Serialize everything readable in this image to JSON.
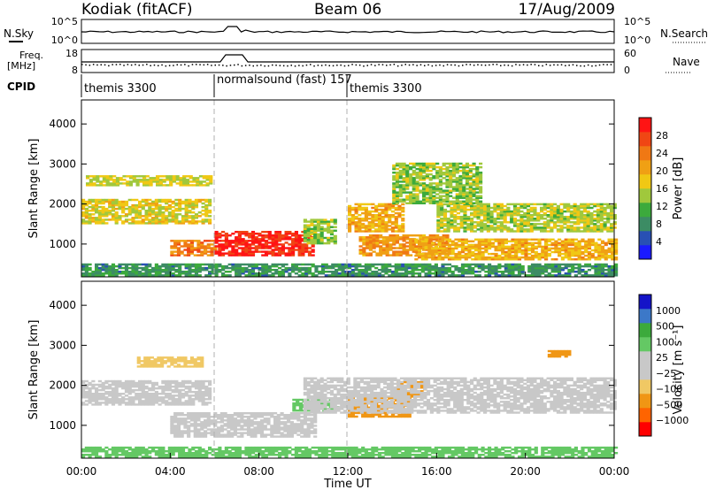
{
  "header": {
    "site": "Kodiak (fitACF)",
    "beam": "Beam 06",
    "date": "17/Aug/2009"
  },
  "top_panels": {
    "nsky_label": "N.Sky",
    "nsearch_label": "N.Search",
    "freq_label": "Freq.",
    "freq_unit": "[MHz]",
    "nave_label": "Nave",
    "cpid_label": "CPID",
    "nsky_ticks": [
      "10^5",
      "10^0"
    ],
    "nsearch_ticks": [
      "10^5",
      "10^0"
    ],
    "freq_ticks": [
      "18",
      "8"
    ],
    "nave_ticks": [
      "60",
      "0"
    ],
    "cpid_segments": [
      {
        "label": "themis 3300",
        "start": 0,
        "end": 6
      },
      {
        "label": "normalsound (fast) 157",
        "start": 6,
        "end": 12
      },
      {
        "label": "themis 3300",
        "start": 12,
        "end": 24
      }
    ]
  },
  "x_axis": {
    "label": "Time UT",
    "ticks": [
      "00:00",
      "04:00",
      "08:00",
      "12:00",
      "16:00",
      "20:00",
      "00:00"
    ]
  },
  "colors": {
    "power": [
      "#1a1aff",
      "#2850b4",
      "#3c8c64",
      "#3caa3c",
      "#a0c83c",
      "#f0c814",
      "#f0a014",
      "#f07814",
      "#f04614",
      "#ff1414"
    ],
    "velocity": [
      "#ff0000",
      "#ff6400",
      "#f09614",
      "#f0c864",
      "#c8c8c8",
      "#c8c8c8",
      "#64c864",
      "#3caa3c",
      "#3c78c8",
      "#1414c8"
    ]
  },
  "chart_data": [
    {
      "type": "heatmap",
      "title": "Power",
      "xlabel": "Time UT",
      "ylabel": "Slant Range [km]",
      "xlim": [
        0,
        24
      ],
      "ylim": [
        180,
        4600
      ],
      "y_ticks": [
        1000,
        2000,
        3000,
        4000
      ],
      "colorbar": {
        "label": "Power [dB]",
        "ticks": [
          4,
          8,
          12,
          16,
          20,
          24,
          28
        ],
        "range": [
          0,
          32
        ]
      },
      "features": [
        {
          "t0": 0.0,
          "t1": 5.8,
          "r0": 1500,
          "r1": 2100,
          "value": 17
        },
        {
          "t0": 0.2,
          "t1": 5.8,
          "r0": 2450,
          "r1": 2700,
          "value": 16
        },
        {
          "t0": 4.0,
          "t1": 6.0,
          "r0": 700,
          "r1": 1100,
          "value": 24
        },
        {
          "t0": 6.0,
          "t1": 10.5,
          "r0": 700,
          "r1": 1300,
          "value": 29
        },
        {
          "t0": 10.0,
          "t1": 11.5,
          "r0": 1000,
          "r1": 1600,
          "value": 14
        },
        {
          "t0": 12.0,
          "t1": 14.5,
          "r0": 1300,
          "r1": 2000,
          "value": 20
        },
        {
          "t0": 12.5,
          "t1": 16.5,
          "r0": 700,
          "r1": 1200,
          "value": 22
        },
        {
          "t0": 15.0,
          "t1": 24.0,
          "r0": 600,
          "r1": 1100,
          "value": 20
        },
        {
          "t0": 16.0,
          "t1": 24.0,
          "r0": 1300,
          "r1": 2000,
          "value": 15
        },
        {
          "t0": 14.0,
          "t1": 18.0,
          "r0": 2000,
          "r1": 3000,
          "value": 14
        },
        {
          "t0": 0.0,
          "t1": 24.0,
          "r0": 200,
          "r1": 500,
          "value": 9
        }
      ]
    },
    {
      "type": "heatmap",
      "title": "Velocity",
      "xlabel": "Time UT",
      "ylabel": "Slant Range [km]",
      "xlim": [
        0,
        24
      ],
      "ylim": [
        180,
        4600
      ],
      "y_ticks": [
        1000,
        2000,
        3000,
        4000
      ],
      "colorbar": {
        "label": "Velocity [m s⁻¹]",
        "ticks": [
          "1000",
          "500",
          "100",
          "25",
          "−25",
          "−100",
          "−500",
          "−1000"
        ]
      },
      "features": [
        {
          "t0": 0.0,
          "t1": 5.8,
          "r0": 1500,
          "r1": 2100,
          "value": 0
        },
        {
          "t0": 2.5,
          "t1": 5.5,
          "r0": 2450,
          "r1": 2700,
          "value": -80
        },
        {
          "t0": 4.0,
          "t1": 10.5,
          "r0": 700,
          "r1": 1300,
          "value": 0
        },
        {
          "t0": 9.5,
          "t1": 11.5,
          "r0": 1350,
          "r1": 1650,
          "value": 80
        },
        {
          "t0": 12.0,
          "t1": 14.8,
          "r0": 1200,
          "r1": 1700,
          "value": -150
        },
        {
          "t0": 14.2,
          "t1": 15.5,
          "r0": 1700,
          "r1": 2100,
          "value": -120
        },
        {
          "t0": 10.0,
          "t1": 24.0,
          "r0": 1300,
          "r1": 2200,
          "value": 0
        },
        {
          "t0": 21.0,
          "t1": 22.0,
          "r0": 2700,
          "r1": 2850,
          "value": -150
        },
        {
          "t0": 0.0,
          "t1": 24.0,
          "r0": 200,
          "r1": 450,
          "value": 30
        }
      ]
    }
  ]
}
